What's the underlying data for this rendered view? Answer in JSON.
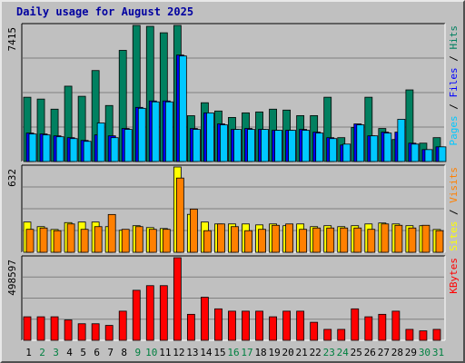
{
  "chart_data": {
    "type": "bar",
    "title": "Daily usage for August 2025",
    "categories": [
      "1",
      "2",
      "3",
      "4",
      "5",
      "6",
      "7",
      "8",
      "9",
      "10",
      "11",
      "12",
      "13",
      "14",
      "15",
      "16",
      "17",
      "18",
      "19",
      "20",
      "21",
      "22",
      "23",
      "24",
      "25",
      "26",
      "27",
      "28",
      "29",
      "30",
      "31"
    ],
    "weekend_days": [
      "2",
      "3",
      "9",
      "10",
      "16",
      "17",
      "23",
      "24",
      "30",
      "31"
    ],
    "colors": {
      "weekday_label": "#000000",
      "weekend_label": "#008040",
      "panel_bg": "#c0c0c0",
      "grid": "#808080",
      "pages": "#00c8ff",
      "files": "#0000ff",
      "hits": "#008060",
      "visits": "#ff8000",
      "sites": "#ffff00",
      "kbytes": "#ff0000"
    },
    "panels": [
      {
        "name": "hits-files-pages",
        "max_label": "7415",
        "ylim": [
          0,
          7415
        ],
        "grid_lines": [
          0.25,
          0.5,
          0.75
        ],
        "legend": [
          {
            "text": "Pages",
            "color": "#00c8ff"
          },
          {
            "text": " / ",
            "color": "#000000"
          },
          {
            "text": "Files",
            "color": "#0000ff"
          },
          {
            "text": " / ",
            "color": "#000000"
          },
          {
            "text": "Hits",
            "color": "#008060"
          }
        ],
        "series": [
          {
            "name": "Hits",
            "color": "#008060",
            "values": [
              3503,
              3403,
              2853,
              4105,
              3554,
              4957,
              3052,
              6056,
              7415,
              7365,
              7014,
              7415,
              2497,
              3203,
              2753,
              2402,
              2652,
              2702,
              2853,
              2803,
              2502,
              2502,
              3503,
              1301,
              1853,
              3503,
              1801,
              1200,
              3903,
              1001,
              1301
            ]
          },
          {
            "name": "Files",
            "color": "#0000ff",
            "values": [
              1550,
              1500,
              1400,
              1300,
              1150,
              1450,
              1400,
              1800,
              2950,
              3300,
              3300,
              5800,
              1800,
              2650,
              2050,
              1750,
              1800,
              1750,
              1700,
              1700,
              1750,
              1600,
              1300,
              900,
              2050,
              1400,
              1600,
              1600,
              1000,
              650,
              800
            ]
          },
          {
            "name": "Pages",
            "color": "#00c8ff",
            "values": [
              1500,
              1450,
              1350,
              1250,
              1100,
              2100,
              1300,
              1750,
              2900,
              3250,
              3250,
              5750,
              1750,
              2650,
              2000,
              1750,
              1750,
              1750,
              1700,
              1700,
              1700,
              1550,
              1250,
              950,
              2000,
              1400,
              1550,
              2300,
              950,
              650,
              800
            ]
          }
        ]
      },
      {
        "name": "visits-sites",
        "max_label": "632",
        "ylim": [
          0,
          632
        ],
        "grid_lines": [
          0.25,
          0.5,
          0.75
        ],
        "legend": [
          {
            "text": "Sites",
            "color": "#ffff00"
          },
          {
            "text": " / ",
            "color": "#000000"
          },
          {
            "text": "Visits",
            "color": "#ff8000"
          }
        ],
        "series": [
          {
            "name": "Sites",
            "color": "#ffff00",
            "values": [
              224,
              190,
              169,
              220,
              224,
              224,
              190,
              163,
              197,
              183,
              176,
              632,
              281,
              224,
              210,
              210,
              210,
              203,
              210,
              197,
              210,
              190,
              197,
              190,
              197,
              210,
              217,
              210,
              197,
              197,
              169
            ]
          },
          {
            "name": "Visits",
            "color": "#ff8000",
            "values": [
              170,
              180,
              160,
              210,
              170,
              190,
              280,
              170,
              190,
              170,
              170,
              550,
              320,
              160,
              210,
              190,
              160,
              170,
              200,
              210,
              170,
              180,
              180,
              180,
              180,
              170,
              210,
              200,
              180,
              200,
              160
            ]
          }
        ]
      },
      {
        "name": "kbytes",
        "max_label": "498597",
        "ylim": [
          0,
          498597
        ],
        "grid_lines": [
          0.25,
          0.5,
          0.75
        ],
        "legend": [
          {
            "text": "KBytes",
            "color": "#ff0000"
          }
        ],
        "series": [
          {
            "name": "KBytes",
            "color": "#ff0000",
            "values": [
              142000,
              142000,
              142000,
              123000,
              100000,
              100000,
              90000,
              176000,
              302000,
              330000,
              330000,
              498597,
              157000,
              260000,
              190000,
              176000,
              176000,
              176000,
              142000,
              176000,
              176000,
              109000,
              66000,
              66000,
              190000,
              142000,
              157000,
              176000,
              66000,
              57000,
              66000
            ]
          }
        ]
      }
    ]
  }
}
